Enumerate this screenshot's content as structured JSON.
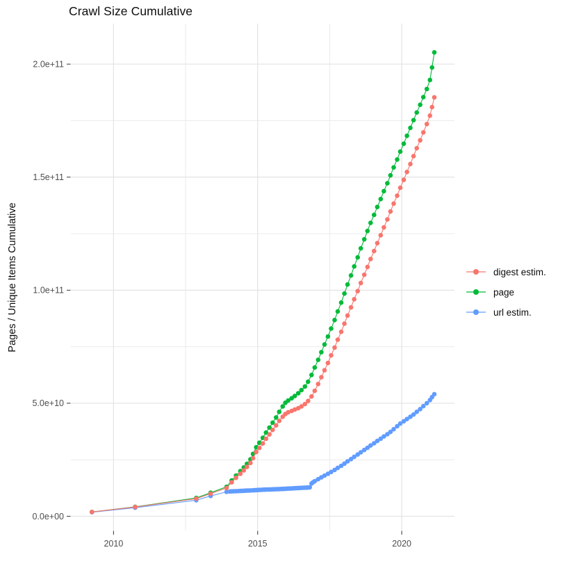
{
  "title": "Crawl Size Cumulative",
  "chart_data": {
    "type": "line",
    "title": "Crawl Size Cumulative",
    "xlabel": "",
    "ylabel": "Pages / Unique Items Cumulative",
    "legend_position": "right",
    "grid": true,
    "xlim": [
      2008.52,
      2021.83
    ],
    "ylim": [
      -6300000000.0,
      217900000000.0
    ],
    "x_ticks": [
      {
        "value": 2010,
        "label": "2010"
      },
      {
        "value": 2015,
        "label": "2015"
      },
      {
        "value": 2020,
        "label": "2020"
      }
    ],
    "x_minor_ticks": [
      2012.5,
      2017.5
    ],
    "y_ticks": [
      {
        "value": 0,
        "label": "0.0e+00"
      },
      {
        "value": 50000000000.0,
        "label": "5.0e+10"
      },
      {
        "value": 100000000000.0,
        "label": "1.0e+11"
      },
      {
        "value": 150000000000.0,
        "label": "1.5e+11"
      },
      {
        "value": 200000000000.0,
        "label": "2.0e+11"
      }
    ],
    "y_minor_ticks": [
      25000000000.0,
      75000000000.0,
      125000000000.0,
      175000000000.0
    ],
    "legend": [
      {
        "name": "digest estim.",
        "color": "#F8766D"
      },
      {
        "name": "page",
        "color": "#00BA38"
      },
      {
        "name": "url estim.",
        "color": "#619CFF"
      }
    ],
    "series": [
      {
        "name": "digest estim.",
        "color": "#F8766D",
        "points": [
          [
            2009.25,
            1900000000.0
          ],
          [
            2010.75,
            4100000000.0
          ],
          [
            2012.87,
            7800000000.0
          ],
          [
            2013.37,
            10000000000.0
          ],
          [
            2013.92,
            12500000000.0
          ],
          [
            2014.1,
            15000000000.0
          ],
          [
            2014.25,
            17000000000.0
          ],
          [
            2014.4,
            18800000000.0
          ],
          [
            2014.52,
            20300000000.0
          ],
          [
            2014.63,
            21800000000.0
          ],
          [
            2014.75,
            23600000000.0
          ],
          [
            2014.84,
            25700000000.0
          ],
          [
            2014.95,
            28400000000.0
          ],
          [
            2015.06,
            30200000000.0
          ],
          [
            2015.18,
            32200000000.0
          ],
          [
            2015.29,
            34300000000.0
          ],
          [
            2015.41,
            36200000000.0
          ],
          [
            2015.52,
            38200000000.0
          ],
          [
            2015.64,
            40200000000.0
          ],
          [
            2015.75,
            42200000000.0
          ],
          [
            2015.87,
            44000000000.0
          ],
          [
            2015.96,
            45200000000.0
          ],
          [
            2016.06,
            46000000000.0
          ],
          [
            2016.18,
            46600000000.0
          ],
          [
            2016.29,
            47200000000.0
          ],
          [
            2016.41,
            47800000000.0
          ],
          [
            2016.52,
            48600000000.0
          ],
          [
            2016.64,
            49600000000.0
          ],
          [
            2016.75,
            51000000000.0
          ],
          [
            2016.87,
            53000000000.0
          ],
          [
            2016.98,
            55500000000.0
          ],
          [
            2017.1,
            58500000000.0
          ],
          [
            2017.21,
            61500000000.0
          ],
          [
            2017.32,
            64600000000.0
          ],
          [
            2017.44,
            67800000000.0
          ],
          [
            2017.55,
            71200000000.0
          ],
          [
            2017.67,
            74600000000.0
          ],
          [
            2017.78,
            78100000000.0
          ],
          [
            2017.9,
            81600000000.0
          ],
          [
            2018.01,
            85200000000.0
          ],
          [
            2018.12,
            88800000000.0
          ],
          [
            2018.24,
            92400000000.0
          ],
          [
            2018.35,
            96000000000.0
          ],
          [
            2018.47,
            99600000000.0
          ],
          [
            2018.58,
            103200000000.0
          ],
          [
            2018.7,
            106800000000.0
          ],
          [
            2018.81,
            110300000000.0
          ],
          [
            2018.92,
            113800000000.0
          ],
          [
            2019.04,
            117300000000.0
          ],
          [
            2019.15,
            120800000000.0
          ],
          [
            2019.27,
            124300000000.0
          ],
          [
            2019.38,
            127800000000.0
          ],
          [
            2019.5,
            131300000000.0
          ],
          [
            2019.61,
            134800000000.0
          ],
          [
            2019.72,
            138300000000.0
          ],
          [
            2019.84,
            141800000000.0
          ],
          [
            2019.95,
            145300000000.0
          ],
          [
            2020.07,
            148800000000.0
          ],
          [
            2020.18,
            152300000000.0
          ],
          [
            2020.3,
            155800000000.0
          ],
          [
            2020.41,
            159300000000.0
          ],
          [
            2020.52,
            162800000000.0
          ],
          [
            2020.64,
            166300000000.0
          ],
          [
            2020.75,
            169800000000.0
          ],
          [
            2020.87,
            173500000000.0
          ],
          [
            2020.98,
            177200000000.0
          ],
          [
            2021.05,
            181000000000.0
          ],
          [
            2021.13,
            185300000000.0
          ]
        ]
      },
      {
        "name": "page",
        "color": "#00BA38",
        "points": [
          [
            2009.25,
            1900000000.0
          ],
          [
            2010.75,
            4200000000.0
          ],
          [
            2012.87,
            8100000000.0
          ],
          [
            2013.37,
            10400000000.0
          ],
          [
            2013.92,
            13000000000.0
          ],
          [
            2014.1,
            15800000000.0
          ],
          [
            2014.25,
            18000000000.0
          ],
          [
            2014.4,
            20000000000.0
          ],
          [
            2014.52,
            21600000000.0
          ],
          [
            2014.63,
            23200000000.0
          ],
          [
            2014.75,
            25200000000.0
          ],
          [
            2014.84,
            27600000000.0
          ],
          [
            2014.95,
            30500000000.0
          ],
          [
            2015.06,
            32500000000.0
          ],
          [
            2015.18,
            34700000000.0
          ],
          [
            2015.29,
            37000000000.0
          ],
          [
            2015.41,
            39200000000.0
          ],
          [
            2015.52,
            41400000000.0
          ],
          [
            2015.64,
            43700000000.0
          ],
          [
            2015.75,
            46200000000.0
          ],
          [
            2015.87,
            48600000000.0
          ],
          [
            2015.96,
            50200000000.0
          ],
          [
            2016.06,
            51200000000.0
          ],
          [
            2016.18,
            52200000000.0
          ],
          [
            2016.29,
            53200000000.0
          ],
          [
            2016.41,
            54400000000.0
          ],
          [
            2016.52,
            55800000000.0
          ],
          [
            2016.64,
            57400000000.0
          ],
          [
            2016.75,
            59500000000.0
          ],
          [
            2016.87,
            62500000000.0
          ],
          [
            2016.98,
            65800000000.0
          ],
          [
            2017.1,
            69200000000.0
          ],
          [
            2017.21,
            72600000000.0
          ],
          [
            2017.32,
            76000000000.0
          ],
          [
            2017.44,
            79500000000.0
          ],
          [
            2017.55,
            83000000000.0
          ],
          [
            2017.67,
            86800000000.0
          ],
          [
            2017.78,
            90600000000.0
          ],
          [
            2017.9,
            94500000000.0
          ],
          [
            2018.01,
            98500000000.0
          ],
          [
            2018.12,
            102500000000.0
          ],
          [
            2018.24,
            106500000000.0
          ],
          [
            2018.35,
            110500000000.0
          ],
          [
            2018.47,
            114500000000.0
          ],
          [
            2018.58,
            118500000000.0
          ],
          [
            2018.7,
            122500000000.0
          ],
          [
            2018.81,
            126200000000.0
          ],
          [
            2018.92,
            129800000000.0
          ],
          [
            2019.04,
            133300000000.0
          ],
          [
            2019.15,
            136800000000.0
          ],
          [
            2019.27,
            140300000000.0
          ],
          [
            2019.38,
            143800000000.0
          ],
          [
            2019.5,
            147300000000.0
          ],
          [
            2019.61,
            150800000000.0
          ],
          [
            2019.72,
            154300000000.0
          ],
          [
            2019.84,
            157800000000.0
          ],
          [
            2019.95,
            161300000000.0
          ],
          [
            2020.07,
            164800000000.0
          ],
          [
            2020.18,
            168300000000.0
          ],
          [
            2020.3,
            171800000000.0
          ],
          [
            2020.41,
            175200000000.0
          ],
          [
            2020.52,
            178600000000.0
          ],
          [
            2020.64,
            182000000000.0
          ],
          [
            2020.75,
            185400000000.0
          ],
          [
            2020.87,
            189000000000.0
          ],
          [
            2020.98,
            193000000000.0
          ],
          [
            2021.05,
            198500000000.0
          ],
          [
            2021.13,
            205200000000.0
          ]
        ]
      },
      {
        "name": "url estim.",
        "color": "#619CFF",
        "points": [
          [
            2009.25,
            1800000000.0
          ],
          [
            2010.75,
            3800000000.0
          ],
          [
            2012.87,
            7100000000.0
          ],
          [
            2013.37,
            9000000000.0
          ],
          [
            2013.92,
            10800000000.0
          ],
          [
            2014.04,
            10950000000.0
          ],
          [
            2014.1,
            11000000000.0
          ],
          [
            2014.17,
            11050000000.0
          ],
          [
            2014.25,
            11100000000.0
          ],
          [
            2014.33,
            11150000000.0
          ],
          [
            2014.4,
            11200000000.0
          ],
          [
            2014.46,
            11240000000.0
          ],
          [
            2014.52,
            11280000000.0
          ],
          [
            2014.58,
            11310000000.0
          ],
          [
            2014.63,
            11340000000.0
          ],
          [
            2014.69,
            11370000000.0
          ],
          [
            2014.75,
            11400000000.0
          ],
          [
            2014.84,
            11480000000.0
          ],
          [
            2014.9,
            11520000000.0
          ],
          [
            2014.95,
            11560000000.0
          ],
          [
            2015.0,
            11600000000.0
          ],
          [
            2015.06,
            11650000000.0
          ],
          [
            2015.12,
            11700000000.0
          ],
          [
            2015.18,
            11740000000.0
          ],
          [
            2015.24,
            11770000000.0
          ],
          [
            2015.29,
            11800000000.0
          ],
          [
            2015.35,
            11830000000.0
          ],
          [
            2015.41,
            11860000000.0
          ],
          [
            2015.46,
            11890000000.0
          ],
          [
            2015.52,
            11920000000.0
          ],
          [
            2015.58,
            11950000000.0
          ],
          [
            2015.64,
            11980000000.0
          ],
          [
            2015.7,
            12010000000.0
          ],
          [
            2015.75,
            12040000000.0
          ],
          [
            2015.81,
            12070000000.0
          ],
          [
            2015.87,
            12100000000.0
          ],
          [
            2015.92,
            12130000000.0
          ],
          [
            2015.96,
            12160000000.0
          ],
          [
            2016.02,
            12200000000.0
          ],
          [
            2016.06,
            12240000000.0
          ],
          [
            2016.12,
            12280000000.0
          ],
          [
            2016.18,
            12320000000.0
          ],
          [
            2016.24,
            12360000000.0
          ],
          [
            2016.29,
            12400000000.0
          ],
          [
            2016.35,
            12440000000.0
          ],
          [
            2016.41,
            12480000000.0
          ],
          [
            2016.46,
            12520000000.0
          ],
          [
            2016.52,
            12560000000.0
          ],
          [
            2016.58,
            12600000000.0
          ],
          [
            2016.64,
            12640000000.0
          ],
          [
            2016.7,
            12680000000.0
          ],
          [
            2016.75,
            12720000000.0
          ],
          [
            2016.81,
            12800000000.0
          ],
          [
            2016.87,
            14500000000.0
          ],
          [
            2016.92,
            15000000000.0
          ],
          [
            2016.98,
            15500000000.0
          ],
          [
            2017.1,
            16400000000.0
          ],
          [
            2017.21,
            17200000000.0
          ],
          [
            2017.32,
            18000000000.0
          ],
          [
            2017.44,
            18800000000.0
          ],
          [
            2017.55,
            19600000000.0
          ],
          [
            2017.67,
            20500000000.0
          ],
          [
            2017.78,
            21400000000.0
          ],
          [
            2017.9,
            22300000000.0
          ],
          [
            2018.01,
            23300000000.0
          ],
          [
            2018.12,
            24300000000.0
          ],
          [
            2018.24,
            25300000000.0
          ],
          [
            2018.35,
            26300000000.0
          ],
          [
            2018.47,
            27300000000.0
          ],
          [
            2018.58,
            28300000000.0
          ],
          [
            2018.7,
            29300000000.0
          ],
          [
            2018.81,
            30300000000.0
          ],
          [
            2018.92,
            31300000000.0
          ],
          [
            2019.04,
            32300000000.0
          ],
          [
            2019.15,
            33300000000.0
          ],
          [
            2019.27,
            34300000000.0
          ],
          [
            2019.38,
            35300000000.0
          ],
          [
            2019.5,
            36300000000.0
          ],
          [
            2019.61,
            37300000000.0
          ],
          [
            2019.72,
            38500000000.0
          ],
          [
            2019.84,
            39800000000.0
          ],
          [
            2019.95,
            41000000000.0
          ],
          [
            2020.07,
            42000000000.0
          ],
          [
            2020.18,
            43000000000.0
          ],
          [
            2020.3,
            44000000000.0
          ],
          [
            2020.41,
            45000000000.0
          ],
          [
            2020.52,
            46200000000.0
          ],
          [
            2020.64,
            47400000000.0
          ],
          [
            2020.75,
            48700000000.0
          ],
          [
            2020.87,
            50000000000.0
          ],
          [
            2020.98,
            51400000000.0
          ],
          [
            2021.05,
            52700000000.0
          ],
          [
            2021.13,
            54000000000.0
          ]
        ]
      }
    ]
  },
  "style": {
    "grid_major_color": "#e3e3e3",
    "grid_minor_color": "#ebebeb",
    "tick_color": "#333333",
    "axis_text_color": "#4d4d4d"
  }
}
